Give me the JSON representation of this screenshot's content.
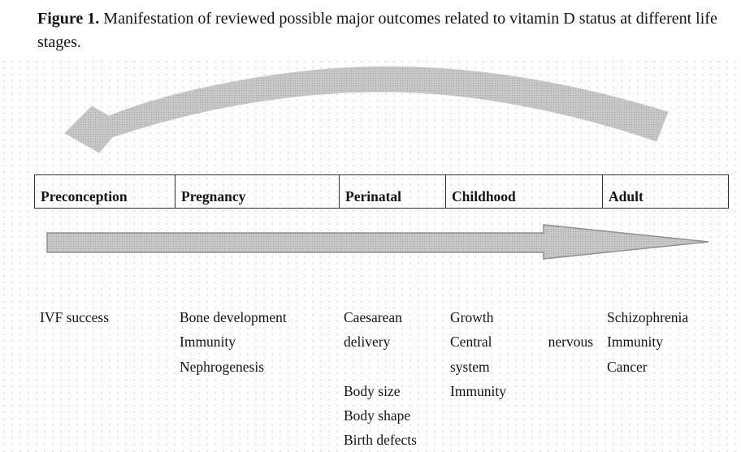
{
  "caption": {
    "label": "Figure 1.",
    "text": " Manifestation of reviewed possible major outcomes related to vitamin D status at different life stages."
  },
  "timeline": {
    "stages": [
      {
        "label": "Preconception",
        "lines": [
          {
            "t": "IVF success"
          }
        ]
      },
      {
        "label": "Pregnancy",
        "lines": [
          {
            "t": "Bone development"
          },
          {
            "t": "Immunity"
          },
          {
            "t": "Nephrogenesis"
          }
        ]
      },
      {
        "label": "Perinatal",
        "lines": [
          {
            "t": "Caesarean"
          },
          {
            "t": "delivery"
          },
          {
            "t": ""
          },
          {
            "t": "Body size"
          },
          {
            "t": "Body shape"
          },
          {
            "t": "Birth defects"
          }
        ]
      },
      {
        "label": "Childhood",
        "lines": [
          {
            "t": "Growth"
          },
          {
            "l": "Central",
            "r": "nervous"
          },
          {
            "t": "system"
          },
          {
            "t": "Immunity"
          }
        ]
      },
      {
        "label": "Adult",
        "lines": [
          {
            "t": "Schizophrenia"
          },
          {
            "t": "Immunity"
          },
          {
            "t": "Cancer"
          }
        ]
      }
    ]
  },
  "icons": {
    "curved_arrow": "curved-arrow-pointing-left",
    "straight_arrow": "timeline-arrow-pointing-right"
  },
  "colors": {
    "arrow_fill": "#c8c8c8",
    "arrow_dot": "#a2a2a2",
    "arrow_outline": "#909090",
    "table_border": "#2f2f2f",
    "text": "#141414"
  }
}
